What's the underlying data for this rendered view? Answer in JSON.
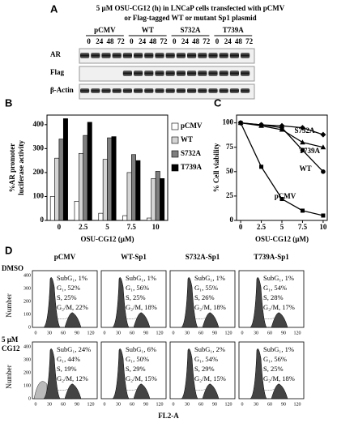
{
  "panel_a": {
    "letter": "A",
    "title_lines": [
      "5 µM OSU-CG12 (h) in LNCaP cells transfected with pCMV",
      "or Flag-tagged WT or mutant Sp1 plasmid"
    ],
    "groups": [
      "pCMV",
      "WT",
      "S732A",
      "T739A"
    ],
    "times": [
      "0",
      "24",
      "48",
      "72"
    ],
    "rows": [
      "AR",
      "Flag",
      "β-Actin"
    ]
  },
  "chart_data": [
    {
      "type": "bar",
      "letter": "B",
      "y_label": [
        "%AR promoter",
        "luciferase activity"
      ],
      "x_label": "OSU-CG12 (µM)",
      "categories": [
        "0",
        "2.5",
        "5",
        "7.5",
        "10"
      ],
      "series": [
        {
          "name": "pCMV",
          "color": "#ffffff",
          "values": [
            100,
            80,
            30,
            20,
            10
          ]
        },
        {
          "name": "WT",
          "color": "#d4d4d4",
          "values": [
            260,
            280,
            255,
            200,
            175
          ]
        },
        {
          "name": "S732A",
          "color": "#7f7f7f",
          "values": [
            340,
            355,
            345,
            275,
            205
          ]
        },
        {
          "name": "T739A",
          "color": "#000000",
          "values": [
            425,
            410,
            350,
            250,
            175
          ]
        }
      ],
      "ylim": [
        0,
        440
      ],
      "yticks": [
        0,
        100,
        200,
        300,
        400
      ],
      "legend": "right"
    },
    {
      "type": "line",
      "letter": "C",
      "y_label": "% Cell viability",
      "x_label": "OSU-CG12 (µM)",
      "x": [
        0,
        2.5,
        5,
        7.5,
        10
      ],
      "series": [
        {
          "name": "pCMV",
          "color": "#000000",
          "marker": "square",
          "values": [
            100,
            55,
            22,
            10,
            5
          ]
        },
        {
          "name": "WT",
          "color": "#000000",
          "marker": "circle",
          "values": [
            100,
            98,
            95,
            72,
            50
          ]
        },
        {
          "name": "S732A",
          "color": "#000000",
          "marker": "diamond",
          "values": [
            100,
            98,
            97,
            95,
            88
          ]
        },
        {
          "name": "T739A",
          "color": "#000000",
          "marker": "triangle",
          "values": [
            100,
            97,
            93,
            80,
            75
          ]
        }
      ],
      "xlim": [
        -0.5,
        10.5
      ],
      "xticks": [
        0,
        2.5,
        5,
        7.5,
        10
      ],
      "ylim": [
        0,
        108
      ],
      "yticks": [
        0,
        25,
        50,
        75,
        100
      ]
    }
  ],
  "panel_d": {
    "letter": "D",
    "columns": [
      "pCMV",
      "WT-Sp1",
      "S732A-Sp1",
      "T739A-Sp1"
    ],
    "rows": [
      [
        "DMSO"
      ],
      [
        "5 µM",
        "CG12"
      ]
    ],
    "y_label": "Number",
    "x_label": "FL2-A",
    "xticks": [
      "0",
      "30",
      "60",
      "90",
      "120"
    ],
    "yticks": [
      "0",
      "100",
      "200",
      "300",
      "400"
    ],
    "stats": [
      [
        [
          "SubG₁, 1%",
          "G₁, 52%",
          "S, 25%",
          "G₂/M, 22%"
        ],
        [
          "SubG₁, 1%",
          "G₁, 56%",
          "S, 25%",
          "G₂/M, 18%"
        ],
        [
          "SubG₁, 1%",
          "G₁, 55%",
          "S, 26%",
          "G₂/M, 18%"
        ],
        [
          "SubG₁, 1%",
          "G₁, 54%",
          "S, 28%",
          "G₂/M, 17%"
        ]
      ],
      [
        [
          "SubG₁, 24%",
          "G₁, 44%",
          "S, 19%",
          "G₂/M, 12%"
        ],
        [
          "SubG₁, 6%",
          "G₁, 50%",
          "S, 29%",
          "G₂/M, 15%"
        ],
        [
          "SubG₁, 2%",
          "G₁, 54%",
          "S, 29%",
          "G₂/M, 15%"
        ],
        [
          "SubG₁, 1%",
          "G₁, 56%",
          "S, 25%",
          "G₂/M, 18%"
        ]
      ]
    ]
  }
}
